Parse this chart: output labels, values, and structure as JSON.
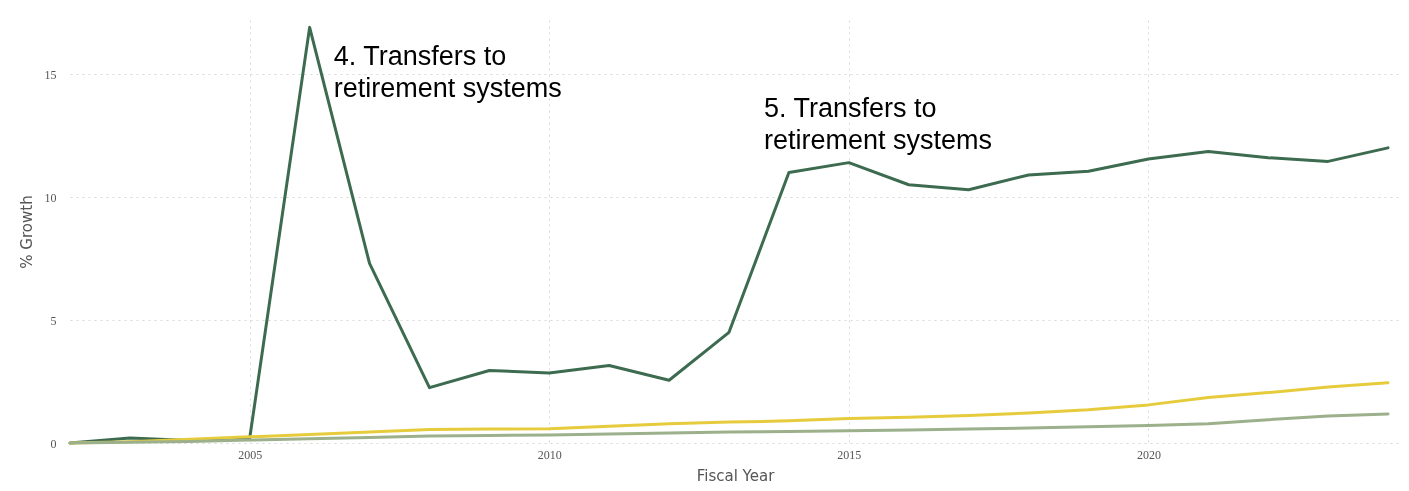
{
  "chart_data": {
    "type": "line",
    "xlabel": "Fiscal Year",
    "ylabel": "% Growth",
    "x": [
      2002,
      2003,
      2004,
      2005,
      2006,
      2007,
      2008,
      2009,
      2010,
      2011,
      2012,
      2013,
      2014,
      2015,
      2016,
      2017,
      2018,
      2019,
      2020,
      2021,
      2022,
      2023,
      2024
    ],
    "series": [
      {
        "color": "#3d6b50",
        "values": [
          0,
          0.2,
          0.1,
          0.2,
          16.9,
          7.3,
          2.25,
          2.95,
          2.85,
          3.15,
          2.55,
          4.5,
          11.0,
          11.4,
          10.5,
          10.3,
          10.9,
          11.05,
          11.55,
          11.85,
          11.6,
          11.45,
          12.0
        ]
      },
      {
        "color": "#e6cc3c",
        "values": [
          0,
          0.05,
          0.15,
          0.25,
          0.35,
          0.45,
          0.55,
          0.57,
          0.58,
          0.68,
          0.78,
          0.85,
          0.9,
          1.0,
          1.05,
          1.12,
          1.22,
          1.35,
          1.55,
          1.85,
          2.05,
          2.28,
          2.45
        ]
      },
      {
        "color": "#9cb08c",
        "values": [
          0,
          0.03,
          0.06,
          0.12,
          0.17,
          0.22,
          0.28,
          0.31,
          0.33,
          0.37,
          0.41,
          0.45,
          0.47,
          0.5,
          0.53,
          0.57,
          0.61,
          0.66,
          0.71,
          0.78,
          0.95,
          1.1,
          1.18
        ]
      }
    ],
    "xlim": [
      2002,
      2024.2
    ],
    "xticks": [
      2005,
      2010,
      2015,
      2020
    ],
    "ylim": [
      0,
      17.2
    ],
    "yticks": [
      0,
      5,
      10,
      15
    ],
    "grid": true,
    "line_style": "solid",
    "marker": "none",
    "annotations": [
      {
        "text": "4. Transfers to\nretirement systems",
        "x": 2006,
        "y": 16.9
      },
      {
        "text": "5. Transfers to\nretirement systems",
        "x": 2014,
        "y": 11.0
      }
    ]
  }
}
